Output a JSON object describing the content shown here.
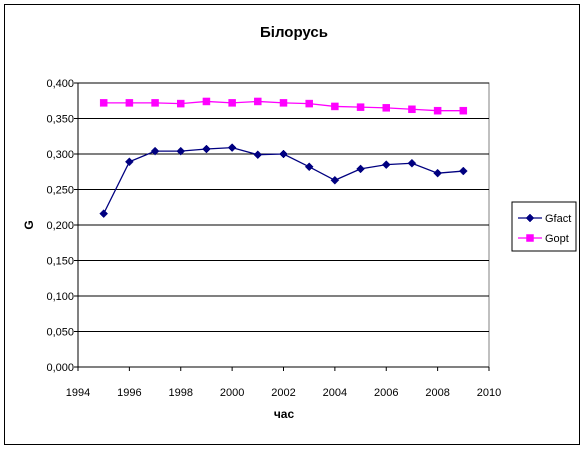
{
  "chart_data": {
    "type": "line",
    "title": "Білорусь",
    "xlabel": "час",
    "ylabel": "G",
    "xlim": [
      1994,
      2010
    ],
    "ylim": [
      0,
      0.4
    ],
    "x_ticks": [
      "1994",
      "1996",
      "1998",
      "2000",
      "2002",
      "2004",
      "2006",
      "2008",
      "2010"
    ],
    "y_ticks": [
      "0,000",
      "0,050",
      "0,100",
      "0,150",
      "0,200",
      "0,250",
      "0,300",
      "0,350",
      "0,400"
    ],
    "grid": "horizontal",
    "legend_position": "right",
    "x": [
      1995,
      1996,
      1997,
      1998,
      1999,
      2000,
      2001,
      2002,
      2003,
      2004,
      2005,
      2006,
      2007,
      2008,
      2009
    ],
    "series": [
      {
        "name": "Gfact",
        "color": "#000080",
        "marker": "diamond",
        "values": [
          0.216,
          0.289,
          0.304,
          0.304,
          0.307,
          0.309,
          0.299,
          0.3,
          0.282,
          0.263,
          0.279,
          0.285,
          0.287,
          0.273,
          0.276
        ]
      },
      {
        "name": "Gopt",
        "color": "#FF00FF",
        "marker": "square",
        "values": [
          0.372,
          0.372,
          0.372,
          0.371,
          0.374,
          0.372,
          0.374,
          0.372,
          0.371,
          0.367,
          0.366,
          0.365,
          0.363,
          0.361,
          0.361
        ]
      }
    ]
  }
}
